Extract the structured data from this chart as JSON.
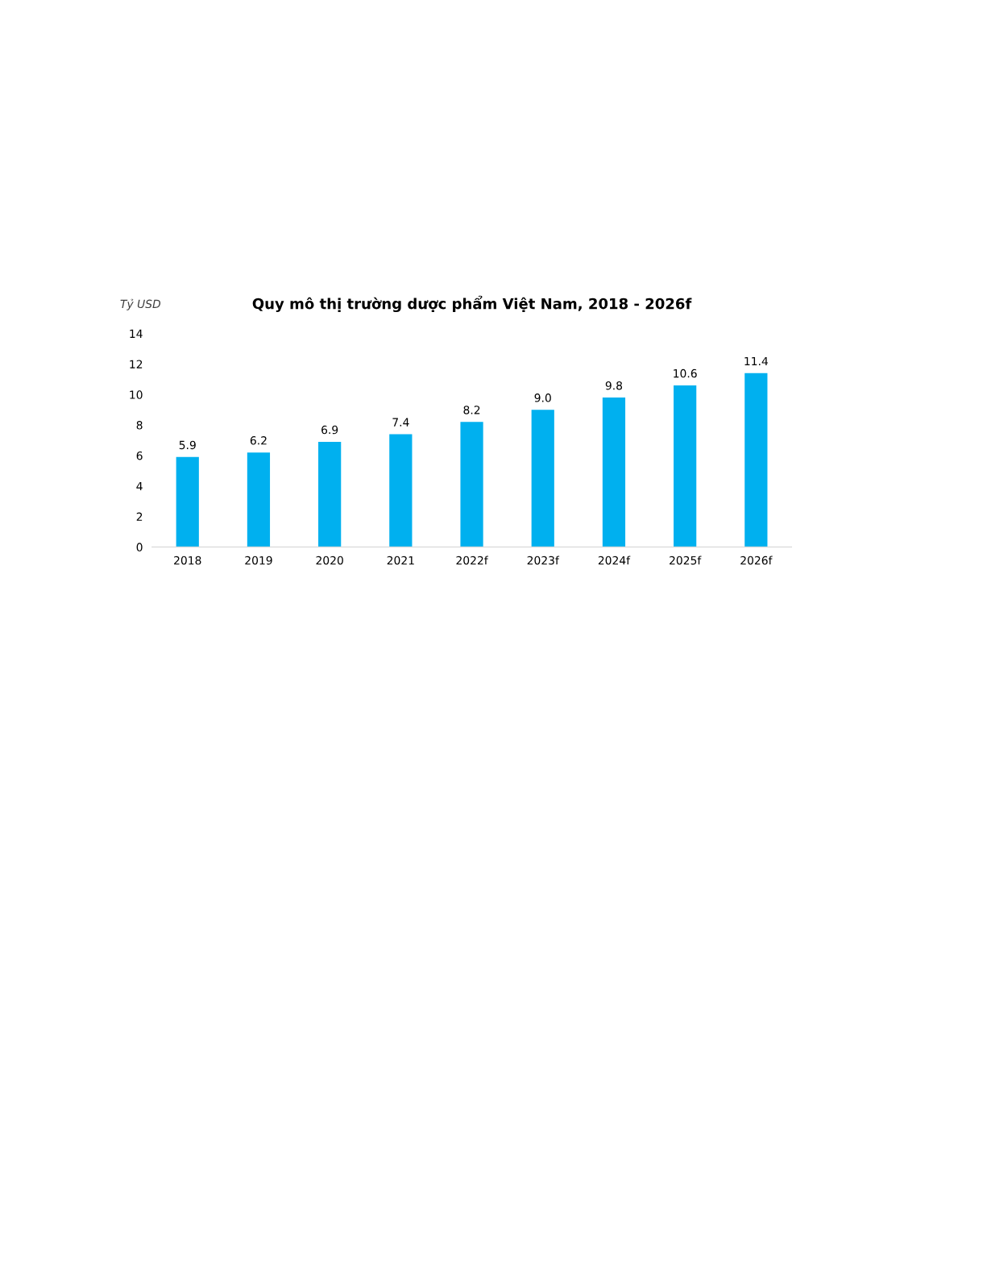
{
  "chart_data": {
    "type": "bar",
    "title": "Quy mô thị trường dược phẩm Việt Nam, 2018 - 2026f",
    "ylabel": "Tỷ USD",
    "categories": [
      "2018",
      "2019",
      "2020",
      "2021",
      "2022f",
      "2023f",
      "2024f",
      "2025f",
      "2026f"
    ],
    "values": [
      5.9,
      6.2,
      6.9,
      7.4,
      8.2,
      9.0,
      9.8,
      10.6,
      11.4
    ],
    "value_labels": [
      "5.9",
      "6.2",
      "6.9",
      "7.4",
      "8.2",
      "9.0",
      "9.8",
      "10.6",
      "11.4"
    ],
    "color": "#00b0ef",
    "ylim": [
      0,
      14
    ],
    "yticks": [
      0,
      2,
      4,
      6,
      8,
      10,
      12,
      14
    ],
    "grid": false,
    "legend": false
  }
}
